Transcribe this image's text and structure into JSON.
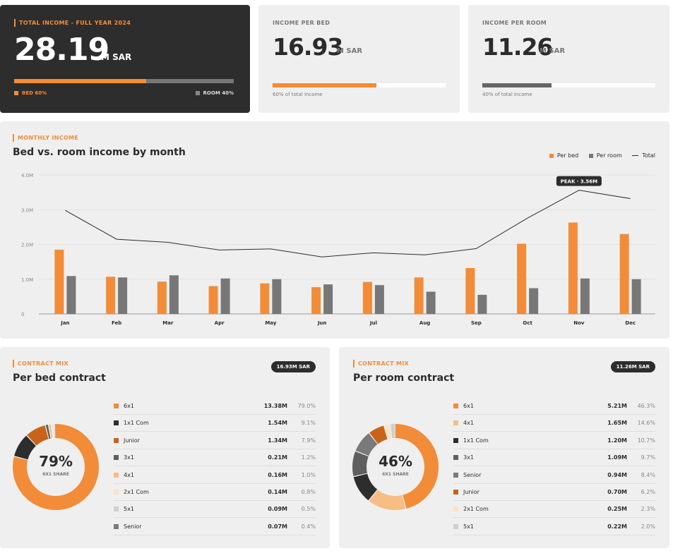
{
  "kpis": {
    "total": {
      "label": "TOTAL INCOME - FULL YEAR 2024",
      "value": "28.19",
      "unit": "M SAR",
      "bed_label": "BED 60%",
      "room_label": "ROOM 40%",
      "bed_share": 0.6,
      "colors": {
        "bed": "#f28c38",
        "room": "#777777"
      }
    },
    "per_bed": {
      "label": "INCOME PER BED",
      "value": "16.93",
      "unit": "M SAR",
      "note": "60% of total income",
      "share": 0.6,
      "color": "#f28c38"
    },
    "per_room": {
      "label": "INCOME PER ROOM",
      "value": "11.26",
      "unit": "M SAR",
      "note": "40% of total income",
      "share": 0.4,
      "color": "#666666"
    }
  },
  "monthly": {
    "eyebrow": "MONTHLY INCOME",
    "title": "Bed vs. room income by month",
    "legend": {
      "bed": "Per bed",
      "room": "Per room",
      "total": "Total"
    },
    "peak_label": "PEAK · 3.56M"
  },
  "chart_data": {
    "type": "bar",
    "categories": [
      "Jan",
      "Feb",
      "Mar",
      "Apr",
      "May",
      "Jun",
      "Jul",
      "Aug",
      "Sep",
      "Oct",
      "Nov",
      "Dec"
    ],
    "series": [
      {
        "name": "Per bed",
        "type": "bar",
        "color": "#f28c38",
        "values": [
          1.85,
          1.07,
          0.93,
          0.8,
          0.88,
          0.77,
          0.92,
          1.05,
          1.32,
          2.02,
          2.63,
          2.3
        ]
      },
      {
        "name": "Per room",
        "type": "bar",
        "color": "#777777",
        "values": [
          1.09,
          1.05,
          1.11,
          1.02,
          1.0,
          0.85,
          0.83,
          0.64,
          0.55,
          0.74,
          1.02,
          1.0
        ]
      },
      {
        "name": "Total",
        "type": "line",
        "color": "#2d2d2d",
        "values": [
          2.98,
          2.15,
          2.06,
          1.84,
          1.87,
          1.64,
          1.76,
          1.7,
          1.88,
          2.76,
          3.56,
          3.32
        ]
      }
    ],
    "y_ticks": [
      "0",
      "1.0M",
      "2.0M",
      "3.0M",
      "4.0M"
    ],
    "ylim": [
      0,
      4
    ],
    "grid": true,
    "legend_position": "top-right"
  },
  "contract_bed": {
    "eyebrow": "CONTRACT MIX",
    "title": "Per bed contract",
    "badge": "16.93M SAR",
    "center_value": "79%",
    "center_label": "6X1 SHARE",
    "items": [
      {
        "name": "6x1",
        "value": "13.38M",
        "pct": "79.0%",
        "share": 79.0,
        "color": "#f28c38"
      },
      {
        "name": "1x1 Com",
        "value": "1.54M",
        "pct": "9.1%",
        "share": 9.1,
        "color": "#2d2d2d"
      },
      {
        "name": "Junior",
        "value": "1.34M",
        "pct": "7.9%",
        "share": 7.9,
        "color": "#c8641a"
      },
      {
        "name": "3x1",
        "value": "0.21M",
        "pct": "1.2%",
        "share": 1.2,
        "color": "#5f5f5f"
      },
      {
        "name": "4x1",
        "value": "0.16M",
        "pct": "1.0%",
        "share": 1.0,
        "color": "#f8bc85"
      },
      {
        "name": "2x1 Com",
        "value": "0.14M",
        "pct": "0.8%",
        "share": 0.8,
        "color": "#fbe2c6"
      },
      {
        "name": "5x1",
        "value": "0.09M",
        "pct": "0.5%",
        "share": 0.5,
        "color": "#cfcfcf"
      },
      {
        "name": "Senior",
        "value": "0.07M",
        "pct": "0.4%",
        "share": 0.4,
        "color": "#7a7a7a"
      }
    ]
  },
  "contract_room": {
    "eyebrow": "CONTRACT MIX",
    "title": "Per room contract",
    "badge": "11.26M SAR",
    "center_value": "46%",
    "center_label": "6X1 SHARE",
    "items": [
      {
        "name": "6x1",
        "value": "5.21M",
        "pct": "46.3%",
        "share": 46.3,
        "color": "#f28c38"
      },
      {
        "name": "4x1",
        "value": "1.65M",
        "pct": "14.6%",
        "share": 14.6,
        "color": "#f8bc85"
      },
      {
        "name": "1x1 Com",
        "value": "1.20M",
        "pct": "10.7%",
        "share": 10.7,
        "color": "#2d2d2d"
      },
      {
        "name": "3x1",
        "value": "1.09M",
        "pct": "9.7%",
        "share": 9.7,
        "color": "#5f5f5f"
      },
      {
        "name": "Senior",
        "value": "0.94M",
        "pct": "8.4%",
        "share": 8.4,
        "color": "#7a7a7a"
      },
      {
        "name": "Junior",
        "value": "0.70M",
        "pct": "6.2%",
        "share": 6.2,
        "color": "#c8641a"
      },
      {
        "name": "2x1 Com",
        "value": "0.25M",
        "pct": "2.3%",
        "share": 2.3,
        "color": "#fbe2c6"
      },
      {
        "name": "5x1",
        "value": "0.22M",
        "pct": "2.0%",
        "share": 2.0,
        "color": "#cfcfcf"
      }
    ]
  }
}
